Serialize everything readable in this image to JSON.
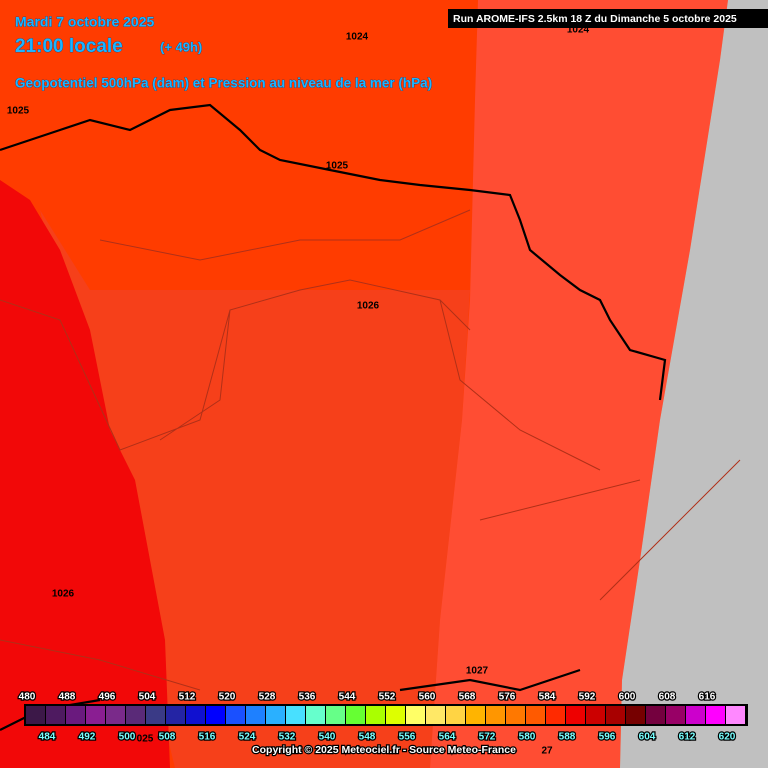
{
  "header": {
    "date": "Mardi 7 octobre 2025",
    "time": "21:00 locale",
    "lead": "(+ 49h)",
    "field": "Geopotentiel 500hPa (dam) et Pression au niveau de la mer (hPa)",
    "run": "Run AROME-IFS 2.5km 18 Z du Dimanche 5 octobre 2025"
  },
  "isobars": [
    {
      "label": "1024"
    },
    {
      "label": "1024"
    },
    {
      "label": "1025"
    },
    {
      "label": "1025"
    },
    {
      "label": "1026"
    },
    {
      "label": "1026"
    },
    {
      "label": "1027"
    },
    {
      "label": "025"
    },
    {
      "label": "27"
    }
  ],
  "legend": {
    "values": [
      480,
      484,
      488,
      492,
      496,
      500,
      504,
      508,
      512,
      516,
      520,
      524,
      528,
      532,
      536,
      540,
      544,
      548,
      552,
      556,
      560,
      564,
      568,
      572,
      576,
      580,
      584,
      588,
      592,
      596,
      600,
      604,
      608,
      612,
      616,
      620
    ],
    "colors": [
      "#3c1848",
      "#4e1a60",
      "#6a1a7e",
      "#8a1e92",
      "#7a2a8a",
      "#5a2a78",
      "#3a3a86",
      "#2424a4",
      "#1010d0",
      "#0000ff",
      "#1a50ff",
      "#1e80ff",
      "#2ab0ff",
      "#48e0ff",
      "#66ffcc",
      "#66ff88",
      "#66ff33",
      "#aaff00",
      "#ddff00",
      "#ffff66",
      "#ffe866",
      "#ffd444",
      "#ffb400",
      "#ff9600",
      "#ff7800",
      "#ff5a00",
      "#ff2a00",
      "#ee0000",
      "#cc0000",
      "#a80000",
      "#760000",
      "#74003e",
      "#980066",
      "#cc00cc",
      "#ff00ff",
      "#ff88ff"
    ]
  },
  "footer": {
    "copyright": "Copyright © 2025 Meteociel.fr - Source Meteo-France"
  }
}
